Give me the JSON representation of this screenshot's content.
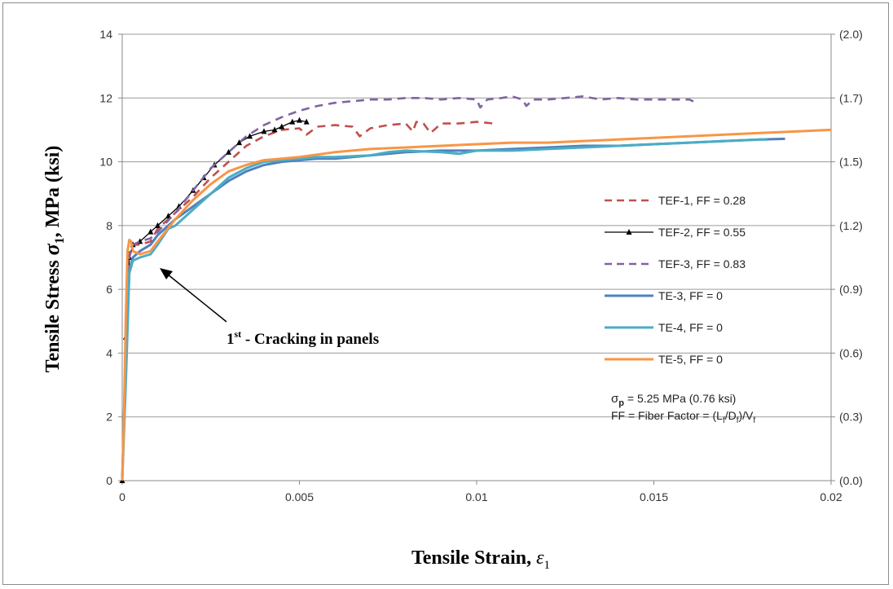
{
  "chart_data": {
    "type": "line",
    "title": "",
    "xlabel": "Tensile Strain,",
    "xlabel_symbol": "ε",
    "xlabel_sub": "1",
    "ylabel": "Tensile Stress",
    "ylabel_symbol": "σ",
    "ylabel_sub": "1",
    "ylabel_units": ",  MPa    (ksi)",
    "xlim": [
      0,
      0.02
    ],
    "ylim": [
      0,
      14
    ],
    "x_ticks": [
      "0",
      "0.005",
      "0.01",
      "0.015",
      "0.02"
    ],
    "x_tick_values": [
      0,
      0.005,
      0.01,
      0.015,
      0.02
    ],
    "y_ticks": [
      "0",
      "2",
      "4",
      "6",
      "8",
      "10",
      "12",
      "14"
    ],
    "y_tick_values": [
      0,
      2,
      4,
      6,
      8,
      10,
      12,
      14
    ],
    "y2_ticks": [
      "(0.0)",
      "(0.3)",
      "(0.6)",
      "(0.9)",
      "(1.2)",
      "(1.5)",
      "(1.7)",
      "(2.0)"
    ],
    "y2_tick_values": [
      0,
      2,
      4,
      6,
      8,
      10,
      12,
      14
    ],
    "grid": "horizontal",
    "legend_position": "right",
    "series": [
      {
        "name": "TEF-1, FF = 0.28",
        "color": "#c0504d",
        "dash": "dashed",
        "marker": "none",
        "x": [
          0,
          0.0001,
          0.0002,
          0.0003,
          0.0005,
          0.0008,
          0.001,
          0.0015,
          0.002,
          0.0025,
          0.003,
          0.0035,
          0.004,
          0.0045,
          0.005,
          0.0052,
          0.0055,
          0.006,
          0.0065,
          0.0067,
          0.007,
          0.0075,
          0.008,
          0.0082,
          0.0083,
          0.0085,
          0.0087,
          0.009,
          0.0095,
          0.01,
          0.0105
        ],
        "y": [
          0,
          4,
          7.2,
          7.4,
          7.4,
          7.5,
          7.9,
          8.4,
          8.9,
          9.5,
          10.0,
          10.5,
          10.8,
          11.0,
          11.05,
          10.85,
          11.1,
          11.15,
          11.1,
          10.8,
          11.05,
          11.15,
          11.2,
          10.95,
          11.25,
          11.2,
          10.9,
          11.2,
          11.2,
          11.25,
          11.2
        ]
      },
      {
        "name": "TEF-2, FF = 0.55",
        "color": "#000000",
        "dash": "solid",
        "marker": "triangle",
        "x": [
          0,
          0.0001,
          0.0002,
          0.0003,
          0.0005,
          0.0008,
          0.001,
          0.0013,
          0.0016,
          0.002,
          0.0023,
          0.0026,
          0.003,
          0.0033,
          0.0036,
          0.004,
          0.0043,
          0.0045,
          0.0048,
          0.005,
          0.0052
        ],
        "y": [
          0,
          4.5,
          7.0,
          7.4,
          7.5,
          7.8,
          8.0,
          8.3,
          8.6,
          9.1,
          9.5,
          9.9,
          10.3,
          10.6,
          10.8,
          10.95,
          11.0,
          11.1,
          11.25,
          11.3,
          11.25
        ]
      },
      {
        "name": "TEF-3, FF = 0.83",
        "color": "#8064a2",
        "dash": "dashed",
        "marker": "none",
        "x": [
          0,
          0.0001,
          0.0002,
          0.0003,
          0.0005,
          0.0008,
          0.001,
          0.0015,
          0.002,
          0.0025,
          0.003,
          0.0035,
          0.004,
          0.0045,
          0.005,
          0.0055,
          0.006,
          0.0065,
          0.007,
          0.0075,
          0.008,
          0.0085,
          0.009,
          0.0095,
          0.01,
          0.0101,
          0.0103,
          0.0107,
          0.011,
          0.0113,
          0.0114,
          0.0116,
          0.012,
          0.0125,
          0.013,
          0.0135,
          0.014,
          0.0145,
          0.015,
          0.0155,
          0.016,
          0.0162
        ],
        "y": [
          0,
          4,
          7.0,
          7.4,
          7.5,
          7.6,
          7.8,
          8.4,
          9.1,
          9.8,
          10.3,
          10.8,
          11.15,
          11.4,
          11.6,
          11.75,
          11.85,
          11.9,
          11.95,
          11.95,
          12.0,
          12.0,
          11.95,
          12.0,
          11.95,
          11.7,
          11.95,
          12.0,
          12.05,
          11.95,
          11.75,
          11.95,
          11.95,
          12.0,
          12.05,
          11.95,
          12.0,
          11.95,
          11.95,
          11.95,
          11.95,
          11.85
        ]
      },
      {
        "name": "TE-3, FF = 0",
        "color": "#4f81bd",
        "dash": "solid",
        "marker": "none",
        "x": [
          0,
          0.0001,
          0.0002,
          0.0003,
          0.0005,
          0.0008,
          0.001,
          0.0015,
          0.002,
          0.0025,
          0.003,
          0.0035,
          0.004,
          0.0045,
          0.005,
          0.0055,
          0.006,
          0.0065,
          0.007,
          0.0075,
          0.008,
          0.009,
          0.01,
          0.011,
          0.012,
          0.013,
          0.014,
          0.015,
          0.016,
          0.017,
          0.018,
          0.0187
        ],
        "y": [
          0,
          4,
          6.6,
          7.0,
          7.2,
          7.4,
          7.7,
          8.2,
          8.6,
          9.0,
          9.4,
          9.7,
          9.9,
          10.0,
          10.05,
          10.1,
          10.1,
          10.15,
          10.2,
          10.25,
          10.3,
          10.35,
          10.35,
          10.4,
          10.45,
          10.5,
          10.5,
          10.55,
          10.6,
          10.65,
          10.7,
          10.72
        ]
      },
      {
        "name": "TE-4, FF = 0",
        "color": "#4bacc6",
        "dash": "solid",
        "marker": "none",
        "x": [
          0,
          0.0001,
          0.0002,
          0.0003,
          0.0005,
          0.0008,
          0.001,
          0.0013,
          0.0015,
          0.002,
          0.0025,
          0.003,
          0.0035,
          0.004,
          0.0045,
          0.005,
          0.0055,
          0.006,
          0.007,
          0.0075,
          0.008,
          0.009,
          0.0095,
          0.01,
          0.011,
          0.012,
          0.013,
          0.014,
          0.015,
          0.016,
          0.017,
          0.018,
          0.0182
        ],
        "y": [
          0,
          3,
          6.5,
          6.9,
          7.0,
          7.1,
          7.4,
          7.9,
          8.0,
          8.5,
          9.0,
          9.5,
          9.8,
          10.0,
          10.05,
          10.1,
          10.15,
          10.15,
          10.2,
          10.3,
          10.35,
          10.3,
          10.25,
          10.35,
          10.35,
          10.4,
          10.45,
          10.5,
          10.55,
          10.6,
          10.65,
          10.7,
          10.7
        ]
      },
      {
        "name": "TE-5, FF = 0",
        "color": "#f79646",
        "dash": "solid",
        "marker": "none",
        "x": [
          0,
          5e-05,
          0.0001,
          0.00015,
          0.0002,
          0.00025,
          0.0003,
          0.0005,
          0.0008,
          0.001,
          0.0015,
          0.002,
          0.0025,
          0.003,
          0.0035,
          0.004,
          0.0045,
          0.005,
          0.006,
          0.007,
          0.008,
          0.009,
          0.01,
          0.011,
          0.012,
          0.013,
          0.014,
          0.015,
          0.016,
          0.017,
          0.018,
          0.019,
          0.02
        ],
        "y": [
          0,
          2,
          5,
          7.2,
          7.55,
          7.5,
          7.2,
          7.1,
          7.2,
          7.5,
          8.2,
          8.8,
          9.3,
          9.7,
          9.9,
          10.05,
          10.1,
          10.15,
          10.3,
          10.4,
          10.45,
          10.5,
          10.55,
          10.6,
          10.6,
          10.65,
          10.7,
          10.75,
          10.8,
          10.85,
          10.9,
          10.95,
          11.0
        ]
      }
    ],
    "annotations": [
      {
        "text_sup_prefix": "1",
        "text_sup": "st",
        "text": " - Cracking in panels",
        "arrow_to": [
          0.0004,
          7.4
        ]
      },
      {
        "line1_symbol": "σ",
        "line1_sub": "p",
        "line1": " = 5.25 MPa (0.76 ksi)",
        "line2_prefix": "FF = Fiber Factor = (L",
        "line2_sub1": "f",
        "line2_mid1": "/D",
        "line2_sub2": "f",
        "line2_mid2": ")/V",
        "line2_sub3": "f"
      }
    ]
  }
}
